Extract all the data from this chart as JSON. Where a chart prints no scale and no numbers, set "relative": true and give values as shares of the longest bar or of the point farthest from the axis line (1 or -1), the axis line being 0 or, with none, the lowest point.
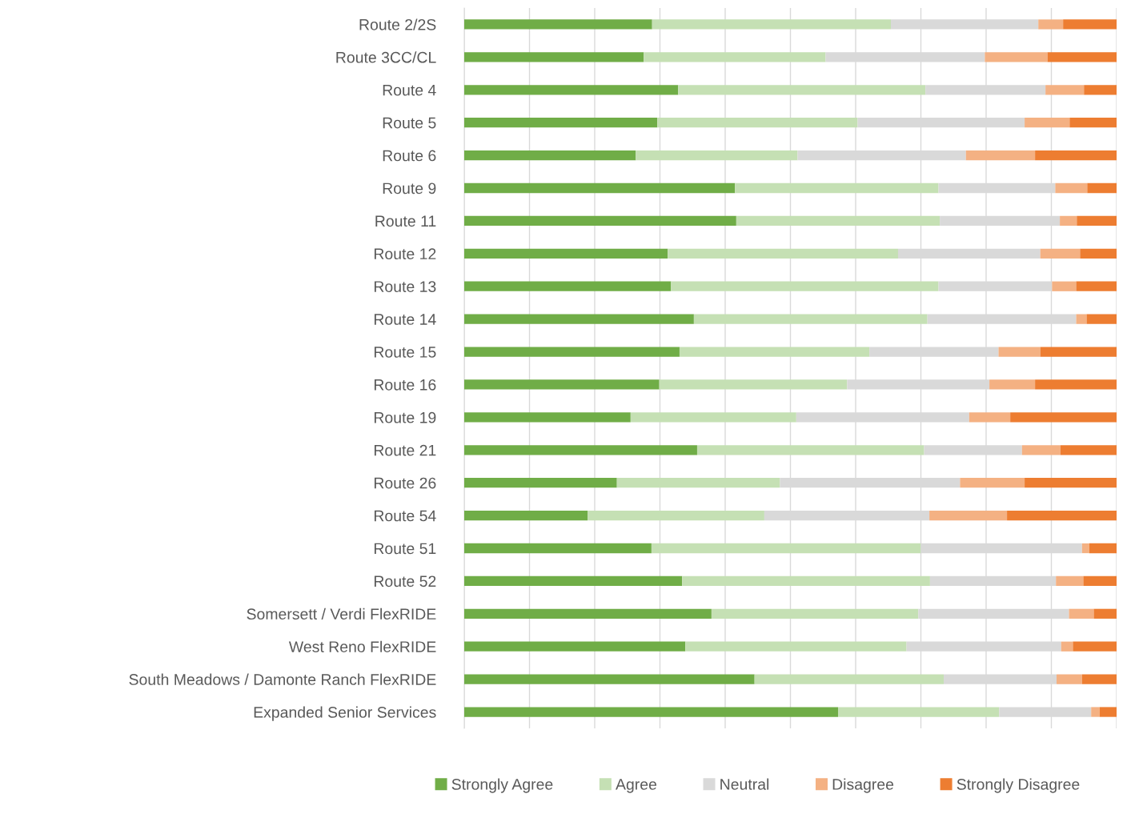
{
  "chart_data": {
    "type": "bar",
    "orientation": "horizontal",
    "stacked": true,
    "relative": true,
    "grid": "x",
    "legend": "bottom",
    "categories": [
      "Route 2/2S",
      "Route 3CC/CL",
      "Route 4",
      "Route 5",
      "Route 6",
      "Route 9",
      "Route 11",
      "Route 12",
      "Route 13",
      "Route 14",
      "Route 15",
      "Route 16",
      "Route 19",
      "Route 21",
      "Route 26",
      "Route 54",
      "Route 51",
      "Route 52",
      "Somersett / Verdi FlexRIDE",
      "West Reno FlexRIDE",
      "South Meadows / Damonte Ranch FlexRIDE",
      "Expanded Senior Services"
    ],
    "series": [
      {
        "name": "Strongly Agree",
        "color": "#70ad47",
        "values": [
          0.288,
          0.275,
          0.328,
          0.296,
          0.263,
          0.415,
          0.417,
          0.312,
          0.317,
          0.352,
          0.33,
          0.299,
          0.255,
          0.357,
          0.234,
          0.189,
          0.287,
          0.334,
          0.379,
          0.339,
          0.445,
          0.573
        ]
      },
      {
        "name": "Agree",
        "color": "#c5e0b4",
        "values": [
          0.366,
          0.279,
          0.379,
          0.307,
          0.248,
          0.312,
          0.312,
          0.353,
          0.41,
          0.358,
          0.291,
          0.288,
          0.254,
          0.348,
          0.25,
          0.271,
          0.413,
          0.38,
          0.317,
          0.339,
          0.29,
          0.247
        ]
      },
      {
        "name": "Neutral",
        "color": "#d9d9d9",
        "values": [
          0.226,
          0.244,
          0.184,
          0.256,
          0.258,
          0.179,
          0.184,
          0.218,
          0.174,
          0.228,
          0.198,
          0.218,
          0.265,
          0.15,
          0.276,
          0.253,
          0.247,
          0.193,
          0.231,
          0.237,
          0.173,
          0.141
        ]
      },
      {
        "name": "Disagree",
        "color": "#f4b183",
        "values": [
          0.038,
          0.096,
          0.059,
          0.069,
          0.106,
          0.049,
          0.026,
          0.061,
          0.037,
          0.016,
          0.064,
          0.07,
          0.063,
          0.059,
          0.099,
          0.119,
          0.011,
          0.042,
          0.038,
          0.018,
          0.039,
          0.013
        ]
      },
      {
        "name": "Strongly Disagree",
        "color": "#ed7d31",
        "values": [
          0.082,
          0.106,
          0.05,
          0.072,
          0.125,
          0.045,
          0.061,
          0.056,
          0.062,
          0.046,
          0.117,
          0.125,
          0.163,
          0.086,
          0.141,
          0.168,
          0.042,
          0.051,
          0.035,
          0.067,
          0.053,
          0.026
        ]
      }
    ]
  }
}
